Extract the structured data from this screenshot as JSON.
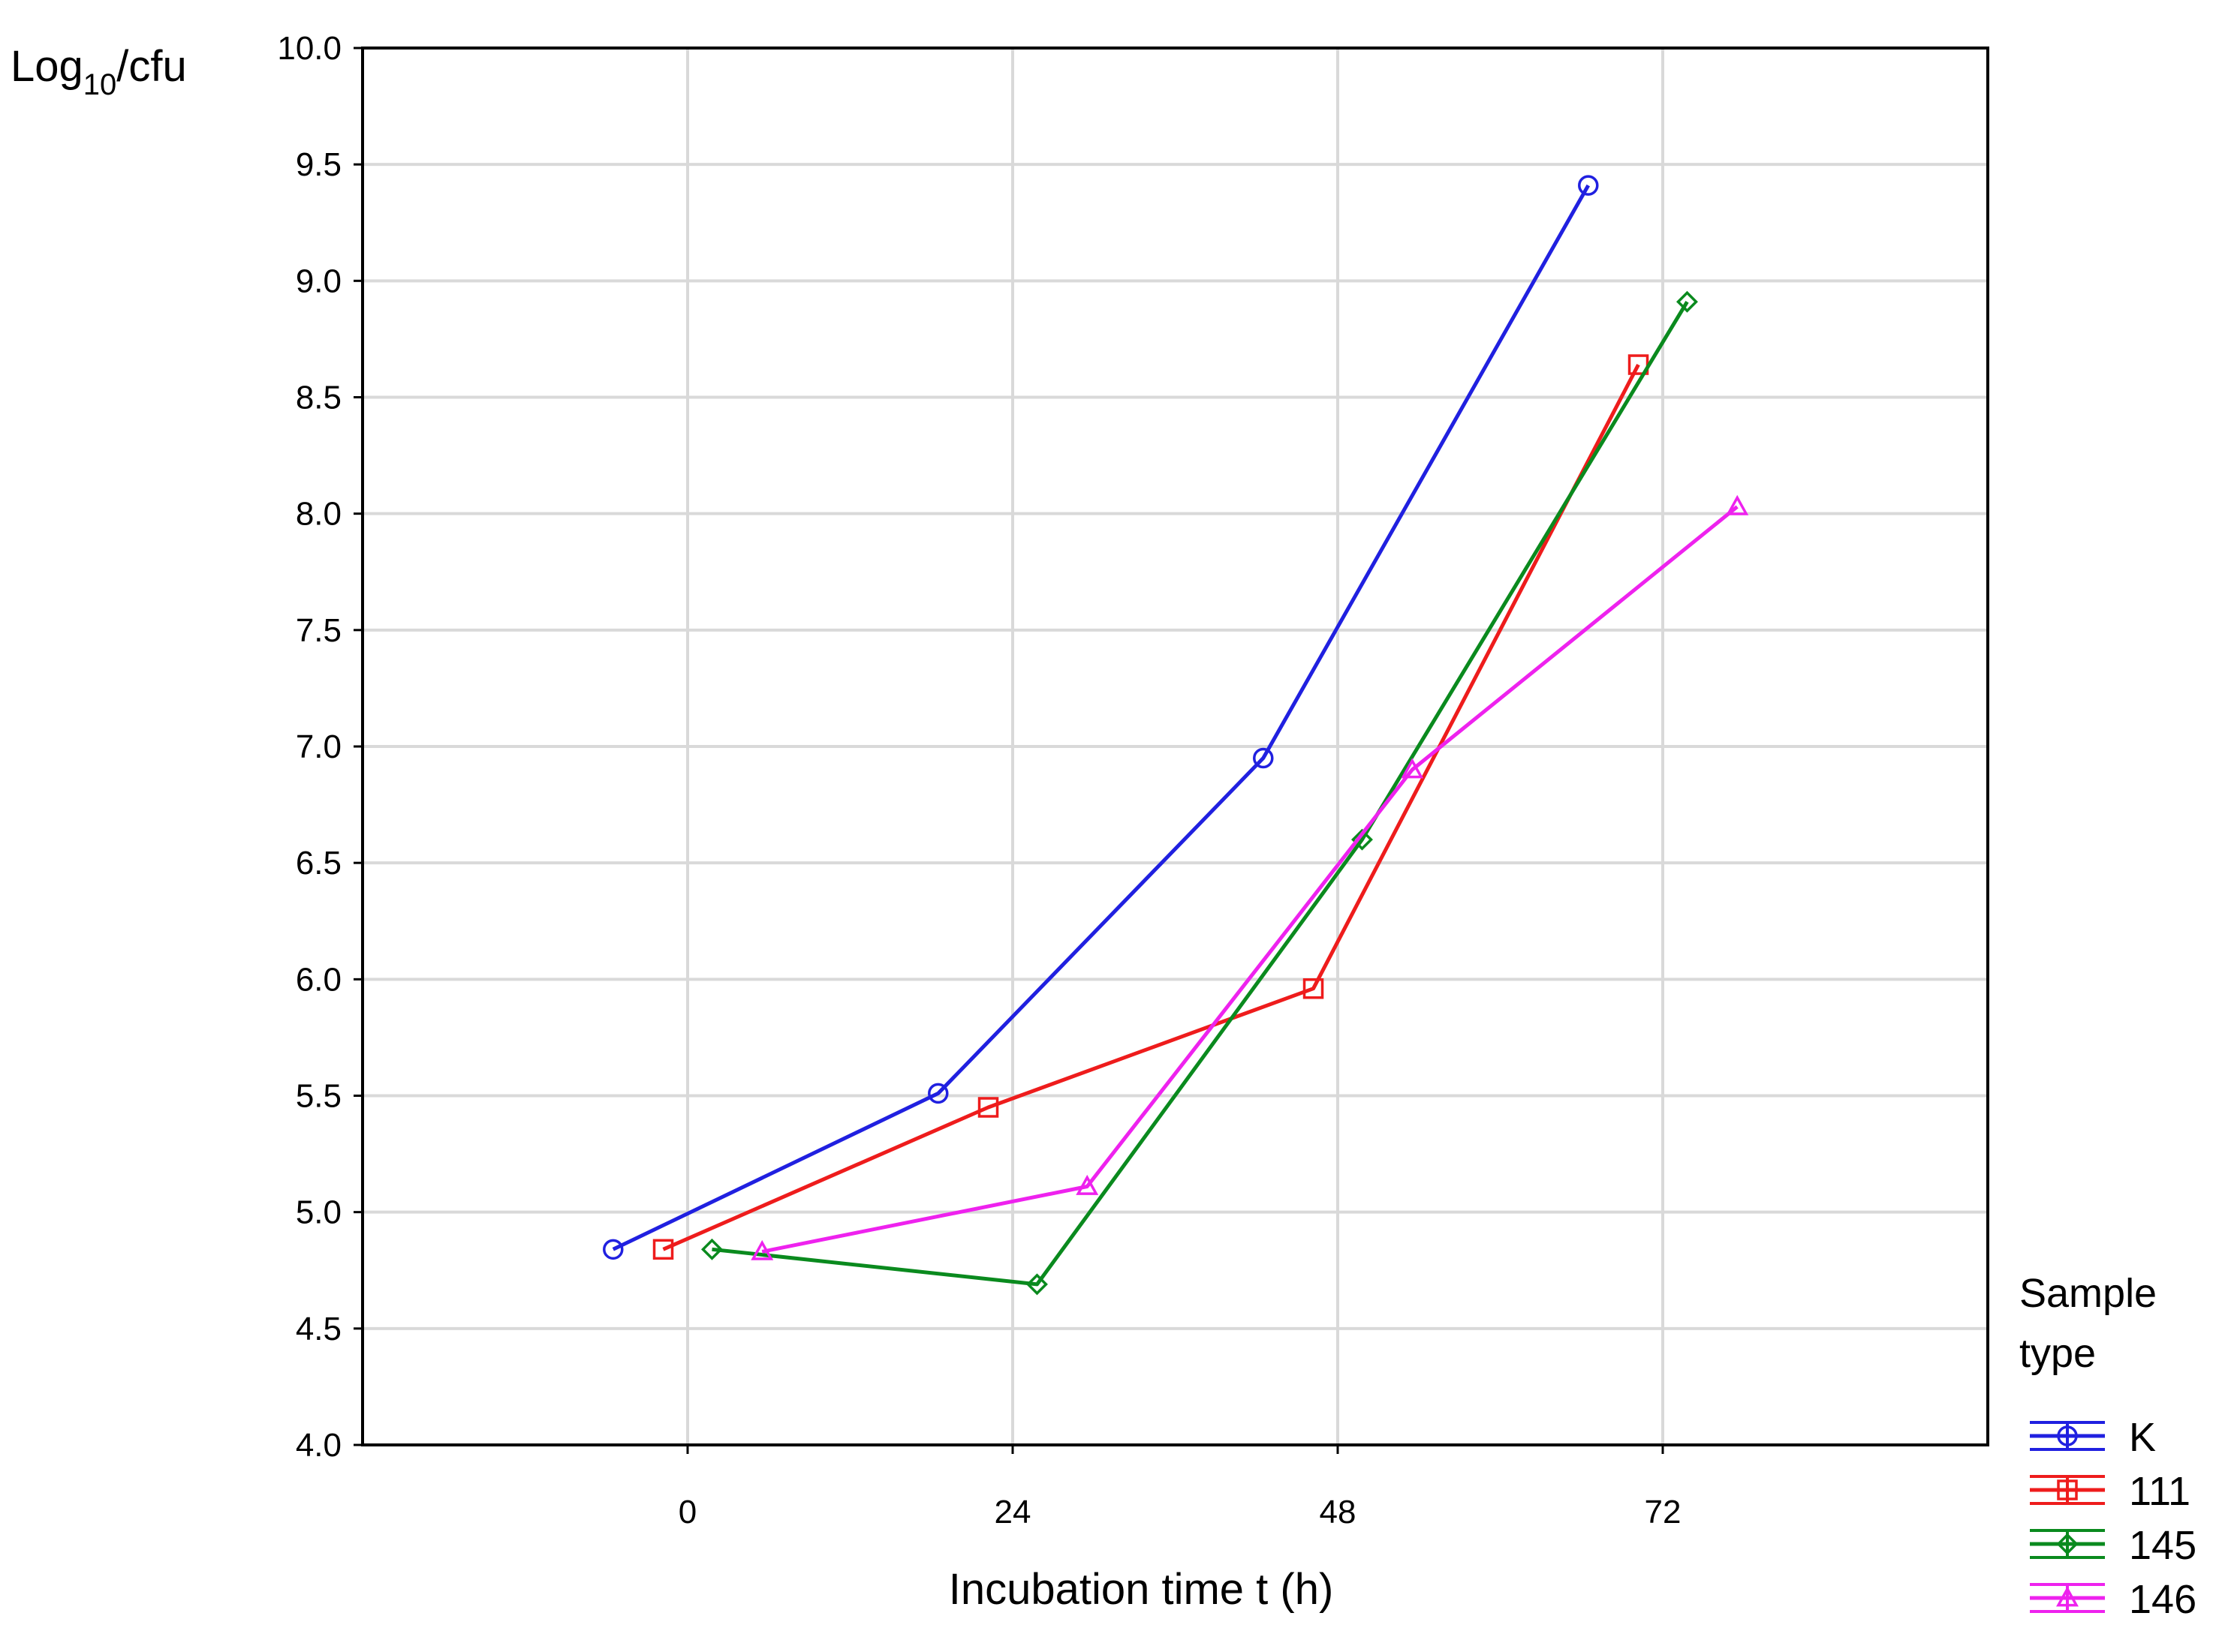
{
  "chart_data": {
    "type": "line",
    "ylabel": {
      "prefix": "Log",
      "subscript": "10",
      "suffix": "/cfu"
    },
    "xlabel": "Incubation time t (h)",
    "x_ticks": [
      0,
      24,
      48,
      72
    ],
    "y_ticks": [
      "4.0",
      "4.5",
      "5.0",
      "5.5",
      "6.0",
      "6.5",
      "7.0",
      "7.5",
      "8.0",
      "8.5",
      "9.0",
      "9.5",
      "10.0"
    ],
    "xlim": [
      -24,
      96
    ],
    "ylim": [
      4.0,
      10.0
    ],
    "grid": true,
    "legend": {
      "title_lines": [
        "Sample",
        "type"
      ],
      "placement": "bottom-right-outside"
    },
    "series": [
      {
        "name": "K",
        "color": "#2020e0",
        "marker": "circle",
        "points": [
          [
            -5.5,
            4.84
          ],
          [
            18.5,
            5.51
          ],
          [
            42.5,
            6.95
          ],
          [
            66.5,
            9.41
          ]
        ]
      },
      {
        "name": "111",
        "color": "#ee1c1c",
        "marker": "square",
        "points": [
          [
            -1.8,
            4.84
          ],
          [
            22.2,
            5.45
          ],
          [
            46.2,
            5.96
          ],
          [
            70.2,
            8.64
          ]
        ]
      },
      {
        "name": "145",
        "color": "#0a8a1e",
        "marker": "diamond",
        "points": [
          [
            1.8,
            4.84
          ],
          [
            25.8,
            4.69
          ],
          [
            49.8,
            6.6
          ],
          [
            73.8,
            8.91
          ]
        ]
      },
      {
        "name": "146",
        "color": "#ee22ee",
        "marker": "triangle",
        "points": [
          [
            5.5,
            4.83
          ],
          [
            29.5,
            5.11
          ],
          [
            53.5,
            6.9
          ],
          [
            77.5,
            8.03
          ]
        ]
      }
    ]
  }
}
